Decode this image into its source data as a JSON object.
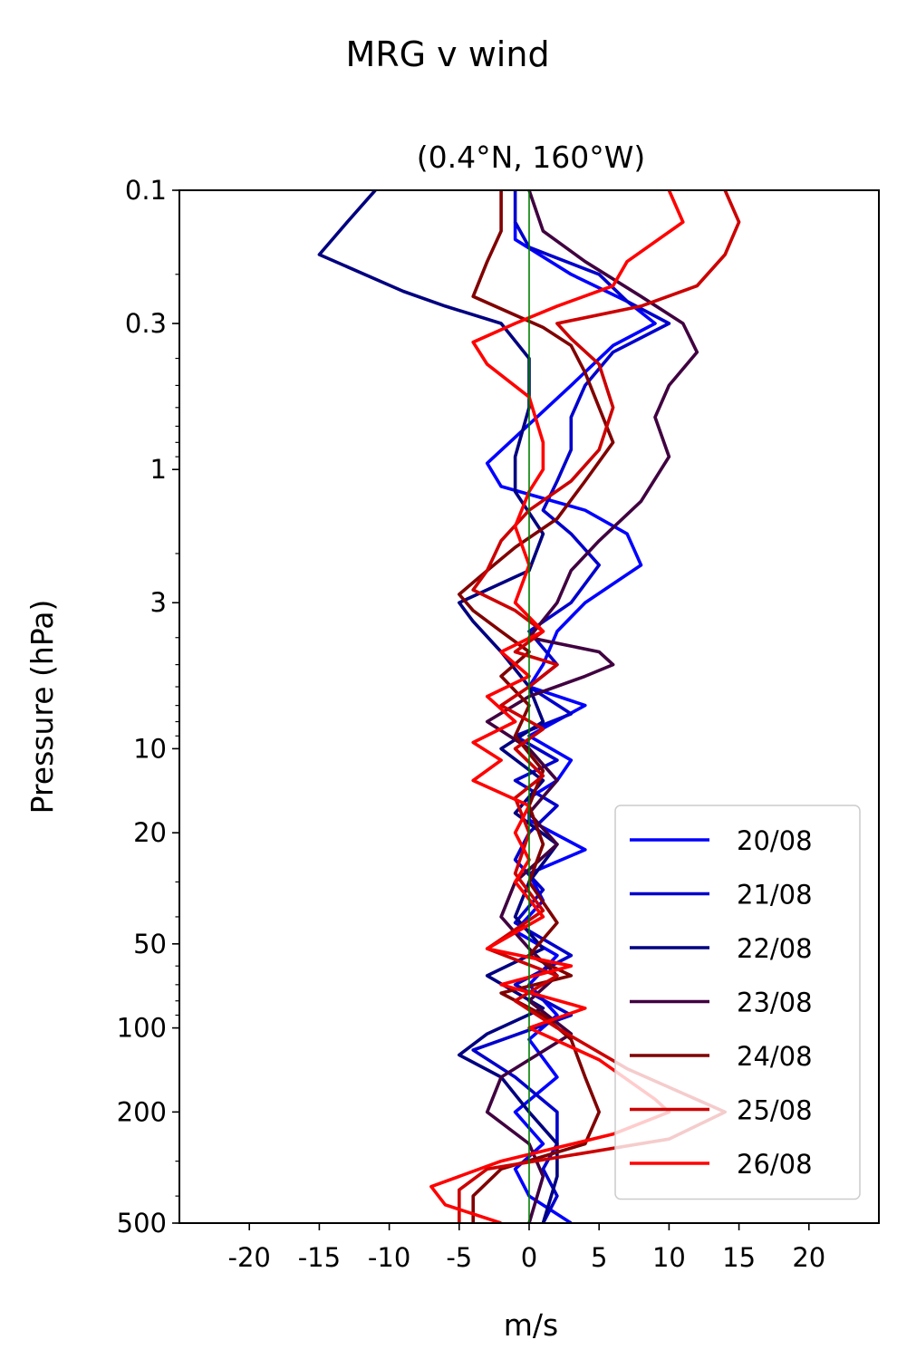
{
  "chart_data": {
    "type": "line",
    "suptitle": "MRG v wind",
    "title": "(0.4°N, 160°W)",
    "xlabel": "m/s",
    "ylabel": "Pressure (hPa)",
    "xlim": [
      -25,
      25
    ],
    "ylim": [
      500,
      0.1
    ],
    "yscale": "log",
    "x_ticks": [
      -20,
      -15,
      -10,
      -5,
      0,
      5,
      10,
      15,
      20
    ],
    "x_tick_labels": [
      "-20",
      "-15",
      "-10",
      "-5",
      "0",
      "5",
      "10",
      "15",
      "20"
    ],
    "y_ticks": [
      0.1,
      0.3,
      1,
      3,
      10,
      20,
      50,
      100,
      200,
      500
    ],
    "y_tick_labels": [
      "0.1",
      "0.3",
      "1",
      "3",
      "10",
      "20",
      "50",
      "100",
      "200",
      "500"
    ],
    "zero_line_color": "#008000",
    "legend_position": "lower right",
    "series": [
      {
        "name": "20/08",
        "color": "#0000ff",
        "points": [
          [
            -1,
            0.13
          ],
          [
            -1,
            0.15
          ],
          [
            3,
            0.2
          ],
          [
            7,
            0.25
          ],
          [
            9,
            0.3
          ],
          [
            6,
            0.36
          ],
          [
            3,
            0.5
          ],
          [
            -3,
            0.95
          ],
          [
            -2,
            1.15
          ],
          [
            4,
            1.4
          ],
          [
            7,
            1.7
          ],
          [
            8,
            2.2
          ],
          [
            4,
            3
          ],
          [
            2,
            3.8
          ],
          [
            1,
            5
          ],
          [
            0,
            6
          ],
          [
            4,
            7
          ],
          [
            0,
            9
          ],
          [
            3,
            11
          ],
          [
            2,
            13
          ],
          [
            0,
            15
          ],
          [
            0,
            18
          ],
          [
            4,
            23
          ],
          [
            0,
            28
          ],
          [
            1,
            35
          ],
          [
            -1,
            45
          ],
          [
            2,
            55
          ],
          [
            0,
            70
          ],
          [
            2,
            90
          ],
          [
            0,
            110
          ],
          [
            2,
            150
          ],
          [
            -1,
            200
          ],
          [
            1,
            260
          ],
          [
            -1,
            320
          ],
          [
            0,
            400
          ],
          [
            3,
            500
          ]
        ]
      },
      {
        "name": "21/08",
        "color": "#0000cc",
        "points": [
          [
            -1,
            0.1
          ],
          [
            -1,
            0.13
          ],
          [
            0,
            0.16
          ],
          [
            5,
            0.2
          ],
          [
            7,
            0.25
          ],
          [
            10,
            0.3
          ],
          [
            6,
            0.38
          ],
          [
            4,
            0.5
          ],
          [
            3,
            0.65
          ],
          [
            3,
            0.85
          ],
          [
            2,
            1.1
          ],
          [
            1,
            1.4
          ],
          [
            3,
            1.7
          ],
          [
            5,
            2.2
          ],
          [
            3,
            3
          ],
          [
            0,
            3.8
          ],
          [
            2,
            5
          ],
          [
            0,
            6
          ],
          [
            3,
            7.5
          ],
          [
            -1,
            9
          ],
          [
            2,
            11
          ],
          [
            -1,
            13
          ],
          [
            2,
            16
          ],
          [
            0,
            20
          ],
          [
            -1,
            25
          ],
          [
            1,
            32
          ],
          [
            -1,
            42
          ],
          [
            3,
            55
          ],
          [
            -1,
            70
          ],
          [
            3,
            90
          ],
          [
            -4,
            120
          ],
          [
            -1,
            150
          ],
          [
            2,
            200
          ],
          [
            2,
            260
          ],
          [
            1,
            320
          ],
          [
            2,
            400
          ],
          [
            1,
            500
          ]
        ]
      },
      {
        "name": "22/08",
        "color": "#000080",
        "points": [
          [
            -11,
            0.1
          ],
          [
            -13,
            0.13
          ],
          [
            -15,
            0.17
          ],
          [
            -9,
            0.23
          ],
          [
            -6,
            0.26
          ],
          [
            -2,
            0.3
          ],
          [
            0,
            0.4
          ],
          [
            0,
            0.6
          ],
          [
            -1,
            0.9
          ],
          [
            -1,
            1.2
          ],
          [
            1,
            1.7
          ],
          [
            0,
            2.3
          ],
          [
            -5,
            3
          ],
          [
            -4,
            3.5
          ],
          [
            -2,
            4.5
          ],
          [
            0,
            6
          ],
          [
            1,
            8
          ],
          [
            -2,
            10
          ],
          [
            1,
            13
          ],
          [
            -1,
            17
          ],
          [
            2,
            22
          ],
          [
            0,
            30
          ],
          [
            -1,
            40
          ],
          [
            1,
            52
          ],
          [
            -3,
            65
          ],
          [
            1,
            85
          ],
          [
            -3,
            105
          ],
          [
            -5,
            125
          ],
          [
            -2,
            150
          ],
          [
            0,
            200
          ],
          [
            2,
            260
          ],
          [
            2,
            340
          ],
          [
            1,
            500
          ]
        ]
      },
      {
        "name": "23/08",
        "color": "#400040",
        "points": [
          [
            0,
            0.1
          ],
          [
            1,
            0.14
          ],
          [
            4,
            0.18
          ],
          [
            8,
            0.24
          ],
          [
            11,
            0.3
          ],
          [
            12,
            0.38
          ],
          [
            10,
            0.5
          ],
          [
            9,
            0.65
          ],
          [
            10,
            0.9
          ],
          [
            8,
            1.3
          ],
          [
            5,
            1.8
          ],
          [
            3,
            2.3
          ],
          [
            2,
            3
          ],
          [
            0,
            4
          ],
          [
            5,
            4.5
          ],
          [
            6,
            5
          ],
          [
            4,
            5.5
          ],
          [
            0,
            6.5
          ],
          [
            -3,
            8
          ],
          [
            0,
            10
          ],
          [
            2,
            13
          ],
          [
            0,
            17
          ],
          [
            2,
            22
          ],
          [
            -1,
            30
          ],
          [
            -2,
            40
          ],
          [
            0,
            52
          ],
          [
            2,
            65
          ],
          [
            0,
            80
          ],
          [
            3,
            105
          ],
          [
            -2,
            150
          ],
          [
            -3,
            200
          ],
          [
            0,
            260
          ],
          [
            1,
            340
          ],
          [
            0,
            500
          ]
        ]
      },
      {
        "name": "24/08",
        "color": "#800000",
        "points": [
          [
            -2,
            0.1
          ],
          [
            -2,
            0.14
          ],
          [
            -3,
            0.18
          ],
          [
            -4,
            0.24
          ],
          [
            -1,
            0.28
          ],
          [
            1,
            0.31
          ],
          [
            3,
            0.36
          ],
          [
            4,
            0.45
          ],
          [
            5,
            0.6
          ],
          [
            6,
            0.8
          ],
          [
            4,
            1.1
          ],
          [
            2,
            1.5
          ],
          [
            -1,
            1.9
          ],
          [
            -3,
            2.3
          ],
          [
            -5,
            2.8
          ],
          [
            -4,
            3.2
          ],
          [
            -2,
            3.8
          ],
          [
            0,
            4.5
          ],
          [
            -2,
            5.5
          ],
          [
            0,
            7
          ],
          [
            -1,
            9
          ],
          [
            1,
            12
          ],
          [
            0,
            16
          ],
          [
            1,
            22
          ],
          [
            0,
            30
          ],
          [
            2,
            42
          ],
          [
            0,
            55
          ],
          [
            3,
            65
          ],
          [
            -2,
            75
          ],
          [
            1,
            90
          ],
          [
            3,
            110
          ],
          [
            4,
            150
          ],
          [
            5,
            200
          ],
          [
            4,
            260
          ],
          [
            -2,
            320
          ],
          [
            -4,
            400
          ],
          [
            -4,
            500
          ]
        ]
      },
      {
        "name": "25/08",
        "color": "#cc0000",
        "points": [
          [
            14,
            0.1
          ],
          [
            15,
            0.13
          ],
          [
            14,
            0.17
          ],
          [
            12,
            0.22
          ],
          [
            8,
            0.26
          ],
          [
            2,
            0.3
          ],
          [
            3,
            0.34
          ],
          [
            5,
            0.42
          ],
          [
            6,
            0.6
          ],
          [
            5,
            0.85
          ],
          [
            3,
            1.1
          ],
          [
            0,
            1.4
          ],
          [
            -2,
            1.8
          ],
          [
            -3,
            2.3
          ],
          [
            -4,
            2.7
          ],
          [
            -1,
            3.2
          ],
          [
            1,
            3.8
          ],
          [
            -1,
            4.5
          ],
          [
            2,
            5
          ],
          [
            0,
            6
          ],
          [
            -2,
            7
          ],
          [
            1,
            8.5
          ],
          [
            -1,
            10
          ],
          [
            1,
            12.5
          ],
          [
            -1,
            15
          ],
          [
            0,
            20
          ],
          [
            -1,
            28
          ],
          [
            1,
            38
          ],
          [
            -3,
            52
          ],
          [
            2,
            65
          ],
          [
            -1,
            80
          ],
          [
            2,
            100
          ],
          [
            7,
            140
          ],
          [
            14,
            200
          ],
          [
            10,
            250
          ],
          [
            -3,
            320
          ],
          [
            -5,
            380
          ],
          [
            -5,
            500
          ]
        ]
      },
      {
        "name": "26/08",
        "color": "#ff0000",
        "points": [
          [
            10,
            0.1
          ],
          [
            11,
            0.13
          ],
          [
            7,
            0.18
          ],
          [
            6,
            0.22
          ],
          [
            2,
            0.26
          ],
          [
            -1,
            0.3
          ],
          [
            -4,
            0.35
          ],
          [
            -3,
            0.42
          ],
          [
            0,
            0.55
          ],
          [
            1,
            0.8
          ],
          [
            1,
            1.0
          ],
          [
            0,
            1.2
          ],
          [
            -1,
            1.6
          ],
          [
            0,
            2.2
          ],
          [
            -1,
            3
          ],
          [
            1,
            3.8
          ],
          [
            -2,
            4.5
          ],
          [
            0,
            5.5
          ],
          [
            -3,
            6.5
          ],
          [
            -1,
            8
          ],
          [
            -4,
            9.5
          ],
          [
            -2,
            11
          ],
          [
            -4,
            13
          ],
          [
            0,
            16
          ],
          [
            -1,
            20
          ],
          [
            0,
            25
          ],
          [
            -1,
            30
          ],
          [
            1,
            40
          ],
          [
            -3,
            52
          ],
          [
            3,
            60
          ],
          [
            -2,
            70
          ],
          [
            4,
            85
          ],
          [
            0,
            100
          ],
          [
            5,
            130
          ],
          [
            9,
            180
          ],
          [
            10,
            200
          ],
          [
            6,
            240
          ],
          [
            -2,
            300
          ],
          [
            -7,
            370
          ],
          [
            -6,
            430
          ],
          [
            -2,
            500
          ]
        ]
      }
    ]
  }
}
